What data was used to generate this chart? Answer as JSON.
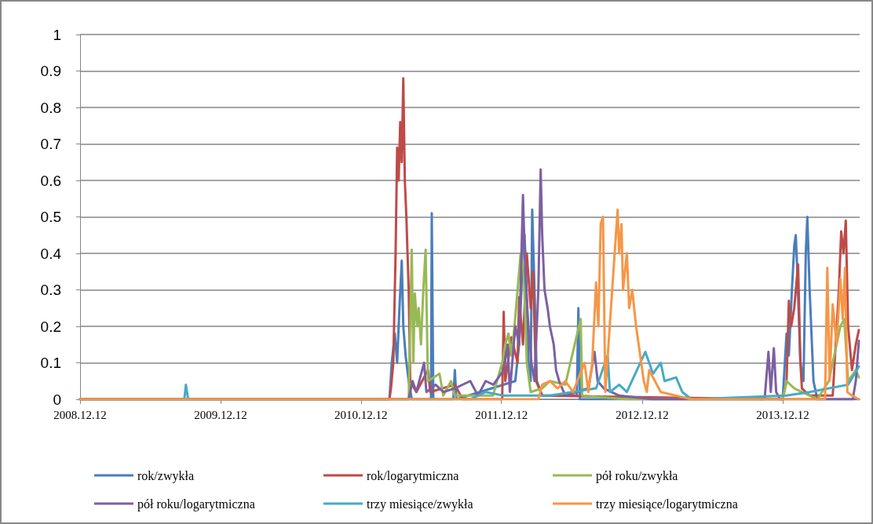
{
  "chart_data": {
    "type": "line",
    "marker": "none",
    "grid": "y",
    "legend": "bottom",
    "xlim": [
      "2008-12-12",
      "2014-06-30"
    ],
    "xticks": [
      {
        "value": "2008-12-12",
        "label": "2008.12.12"
      },
      {
        "value": "2009-12-12",
        "label": "2009.12.12"
      },
      {
        "value": "2010-12-12",
        "label": "2010.12.12"
      },
      {
        "value": "2011-12-12",
        "label": "2011.12.12"
      },
      {
        "value": "2012-12-12",
        "label": "2012.12.12"
      },
      {
        "value": "2013-12-12",
        "label": "2013.12.12"
      }
    ],
    "ylim": [
      0,
      1
    ],
    "yticks": [
      0,
      0.1,
      0.2,
      0.3,
      0.4,
      0.5,
      0.6,
      0.7,
      0.8,
      0.9,
      1
    ],
    "series": [
      {
        "name": "rok/zwykła",
        "color": "#4a7ebb",
        "x": [
          "2008-12-12",
          "2011-02-24",
          "2011-03-02",
          "2011-03-10",
          "2011-03-16",
          "2011-03-22",
          "2011-03-28",
          "2011-04-01",
          "2011-04-07",
          "2011-04-15",
          "2011-04-23",
          "2011-06-12",
          "2011-06-14",
          "2011-06-18",
          "2011-08-09",
          "2011-08-13",
          "2011-08-17",
          "2012-01-17",
          "2012-01-27",
          "2012-02-02",
          "2012-02-06",
          "2012-02-10",
          "2012-02-14",
          "2012-02-20",
          "2012-02-26",
          "2012-03-01",
          "2012-03-07",
          "2012-03-13",
          "2012-03-27",
          "2012-06-25",
          "2012-06-29",
          "2012-07-03",
          "2013-12-12",
          "2013-12-22",
          "2013-12-28",
          "2014-01-05",
          "2014-01-11",
          "2014-01-15",
          "2014-01-19",
          "2014-01-27",
          "2014-02-04",
          "2014-02-10",
          "2014-02-14",
          "2014-02-20",
          "2014-03-02",
          "2014-03-12",
          "2014-06-28"
        ],
        "values": [
          0,
          0,
          0.1,
          0.18,
          0.1,
          0.25,
          0.38,
          0.2,
          0.12,
          0.05,
          0,
          0,
          0.51,
          0,
          0,
          0.08,
          0,
          0.05,
          0.15,
          0.3,
          0.47,
          0.45,
          0.35,
          0.1,
          0.05,
          0.52,
          0.3,
          0.05,
          0.01,
          0.01,
          0.25,
          0,
          0,
          0.18,
          0.12,
          0.3,
          0.42,
          0.45,
          0.35,
          0.1,
          0.05,
          0.4,
          0.5,
          0.3,
          0.05,
          0,
          0
        ]
      },
      {
        "name": "rok/logarytmiczna",
        "color": "#be4b48",
        "x": [
          "2008-12-12",
          "2011-02-24",
          "2011-02-28",
          "2011-03-06",
          "2011-03-12",
          "2011-03-16",
          "2011-03-20",
          "2011-03-24",
          "2011-03-28",
          "2011-04-01",
          "2011-04-05",
          "2011-04-09",
          "2011-04-15",
          "2011-04-19",
          "2011-05-05",
          "2011-06-04",
          "2011-06-10",
          "2011-08-13",
          "2011-09-02",
          "2011-12-14",
          "2011-12-18",
          "2011-12-22",
          "2012-01-07",
          "2012-01-23",
          "2012-01-27",
          "2012-02-06",
          "2012-02-16",
          "2012-02-26",
          "2012-03-03",
          "2012-03-11",
          "2012-03-27",
          "2013-12-12",
          "2013-12-22",
          "2013-12-28",
          "2014-01-03",
          "2014-01-11",
          "2014-01-21",
          "2014-01-27",
          "2014-01-31",
          "2014-02-20",
          "2014-04-21",
          "2014-05-07",
          "2014-05-13",
          "2014-05-19",
          "2014-05-25",
          "2014-05-31",
          "2014-06-10",
          "2014-06-20",
          "2014-06-28"
        ],
        "values": [
          0,
          0,
          0.03,
          0.1,
          0.4,
          0.69,
          0.6,
          0.76,
          0.65,
          0.88,
          0.6,
          0.5,
          0.3,
          0.05,
          0.02,
          0.08,
          0.02,
          0.04,
          0,
          0,
          0.24,
          0.05,
          0.17,
          0.1,
          0.28,
          0.15,
          0.4,
          0.25,
          0.35,
          0.05,
          0.01,
          0,
          0.05,
          0.27,
          0.2,
          0.25,
          0.37,
          0.1,
          0.03,
          0.01,
          0.01,
          0.3,
          0.46,
          0.4,
          0.49,
          0.2,
          0.08,
          0.15,
          0.19
        ]
      },
      {
        "name": "pół roku/zwykła",
        "color": "#98b954",
        "x": [
          "2008-12-12",
          "2011-04-15",
          "2011-04-23",
          "2011-04-27",
          "2011-05-01",
          "2011-05-07",
          "2011-05-11",
          "2011-05-17",
          "2011-05-23",
          "2011-05-29",
          "2011-06-04",
          "2011-07-04",
          "2011-07-14",
          "2011-08-03",
          "2011-08-13",
          "2011-11-20",
          "2011-12-14",
          "2011-12-22",
          "2011-12-30",
          "2012-01-07",
          "2012-01-15",
          "2012-01-23",
          "2012-01-31",
          "2012-02-08",
          "2012-02-16",
          "2012-02-26",
          "2012-03-27",
          "2012-04-16",
          "2012-05-26",
          "2012-07-05",
          "2012-07-09",
          "2012-11-02",
          "2013-12-12",
          "2013-12-22",
          "2014-01-11",
          "2014-03-12",
          "2014-04-11",
          "2014-05-11",
          "2014-05-21",
          "2014-05-31",
          "2014-06-20",
          "2014-06-28"
        ],
        "values": [
          0,
          0,
          0.41,
          0.1,
          0.29,
          0.2,
          0.25,
          0.15,
          0.3,
          0.41,
          0.05,
          0.07,
          0.01,
          0.05,
          0.01,
          0.01,
          0.1,
          0.15,
          0.18,
          0.12,
          0.2,
          0.3,
          0.4,
          0.35,
          0.1,
          0.02,
          0.03,
          0.05,
          0.04,
          0.22,
          0.01,
          0,
          0,
          0.05,
          0.03,
          0,
          0.05,
          0.2,
          0.22,
          0.05,
          0.08,
          0.06
        ]
      },
      {
        "name": "pół roku/logarytmiczna",
        "color": "#7d60a0",
        "x": [
          "2008-12-12",
          "2011-04-15",
          "2011-04-25",
          "2011-05-05",
          "2011-05-25",
          "2011-05-31",
          "2011-06-24",
          "2011-07-14",
          "2011-08-13",
          "2011-09-22",
          "2011-10-12",
          "2011-11-01",
          "2011-11-21",
          "2011-12-18",
          "2011-12-28",
          "2012-01-03",
          "2012-01-17",
          "2012-01-27",
          "2012-02-06",
          "2012-02-12",
          "2012-02-20",
          "2012-02-28",
          "2012-03-07",
          "2012-03-17",
          "2012-03-23",
          "2012-03-27",
          "2012-04-02",
          "2012-04-10",
          "2012-04-16",
          "2012-04-26",
          "2012-05-02",
          "2012-05-10",
          "2012-05-26",
          "2012-07-25",
          "2012-08-10",
          "2012-08-18",
          "2012-09-03",
          "2012-10-13",
          "2013-01-09",
          "2013-10-26",
          "2013-11-05",
          "2013-11-11",
          "2013-11-19",
          "2013-11-25",
          "2013-12-05",
          "2014-06-12",
          "2014-06-20",
          "2014-06-28"
        ],
        "values": [
          0,
          0,
          0.05,
          0.02,
          0.1,
          0.02,
          0.04,
          0.02,
          0.03,
          0.05,
          0.01,
          0.05,
          0.04,
          0.08,
          0.15,
          0.02,
          0.2,
          0.15,
          0.56,
          0.35,
          0.2,
          0.1,
          0.05,
          0.3,
          0.63,
          0.45,
          0.3,
          0.25,
          0.2,
          0.15,
          0.08,
          0.05,
          0.01,
          0.03,
          0.13,
          0.05,
          0.03,
          0.01,
          0,
          0,
          0.13,
          0.02,
          0.14,
          0.02,
          0,
          0,
          0.05,
          0.16
        ]
      },
      {
        "name": "trzy miesiące/zwykła",
        "color": "#46aac5",
        "x": [
          "2008-12-12",
          "2009-09-09",
          "2009-09-13",
          "2009-09-19",
          "2011-09-22",
          "2011-11-01",
          "2011-12-18",
          "2012-04-16",
          "2012-08-14",
          "2012-09-13",
          "2012-09-19",
          "2012-10-13",
          "2012-11-02",
          "2012-12-20",
          "2013-01-09",
          "2013-01-29",
          "2013-02-08",
          "2013-03-10",
          "2013-03-26",
          "2013-04-19",
          "2013-12-22",
          "2014-02-20",
          "2014-05-31",
          "2014-06-28"
        ],
        "values": [
          0,
          0,
          0.04,
          0,
          0,
          0.02,
          0.01,
          0.01,
          0.03,
          0.12,
          0.02,
          0.04,
          0.02,
          0.13,
          0.07,
          0.1,
          0.05,
          0.06,
          0.02,
          0,
          0.01,
          0.02,
          0.04,
          0.09
        ]
      },
      {
        "name": "trzy miesiące/logarytmiczna",
        "color": "#f79646",
        "x": [
          "2008-12-12",
          "2012-03-17",
          "2012-03-27",
          "2012-04-16",
          "2012-05-06",
          "2012-05-26",
          "2012-06-15",
          "2012-07-15",
          "2012-07-25",
          "2012-08-04",
          "2012-08-14",
          "2012-08-20",
          "2012-08-26",
          "2012-09-01",
          "2012-09-07",
          "2012-10-09",
          "2012-10-13",
          "2012-10-19",
          "2012-10-23",
          "2012-11-02",
          "2012-11-08",
          "2012-11-16",
          "2012-11-26",
          "2012-12-16",
          "2012-12-24",
          "2012-12-30",
          "2013-01-29",
          "2013-03-10",
          "2013-04-19",
          "2014-04-01",
          "2014-04-07",
          "2014-04-13",
          "2014-04-21",
          "2014-05-01",
          "2014-05-11",
          "2014-05-17",
          "2014-05-23",
          "2014-05-29",
          "2014-06-10",
          "2014-06-28"
        ],
        "values": [
          0,
          0,
          0.04,
          0.05,
          0.03,
          0.05,
          0.02,
          0.1,
          0.02,
          0.1,
          0.32,
          0.2,
          0.48,
          0.5,
          0.02,
          0.52,
          0.4,
          0.48,
          0.3,
          0.4,
          0.25,
          0.3,
          0.2,
          0.05,
          0.02,
          0.08,
          0.02,
          0.01,
          0,
          0,
          0.36,
          0.05,
          0.26,
          0.15,
          0.33,
          0.22,
          0.36,
          0.02,
          0.01,
          0
        ]
      }
    ]
  }
}
